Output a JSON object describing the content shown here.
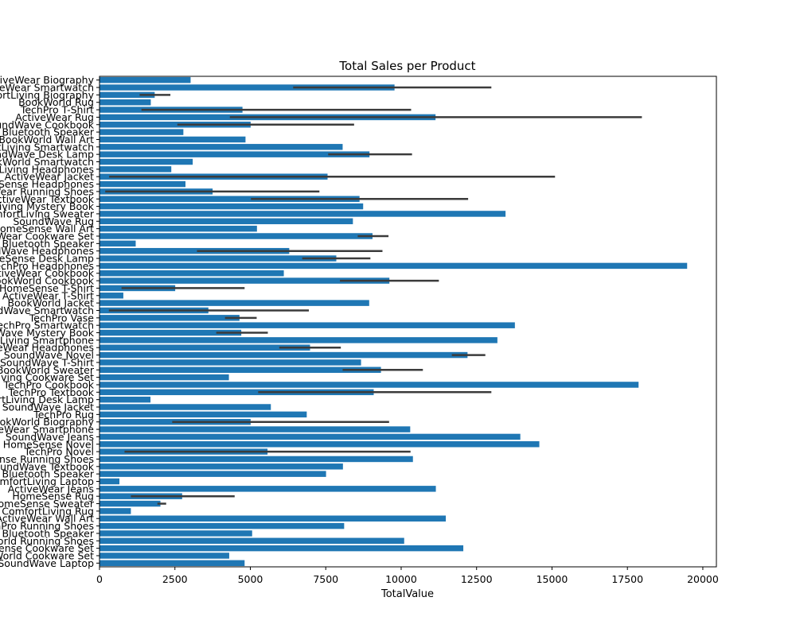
{
  "chart_data": {
    "type": "bar",
    "orientation": "horizontal",
    "title": "Total Sales per Product",
    "xlabel": "TotalValue",
    "ylabel": "",
    "xlim": [
      0,
      20450
    ],
    "xticks": [
      0,
      2500,
      5000,
      7500,
      10000,
      12500,
      15000,
      17500,
      20000
    ],
    "xtick_labels": [
      "0",
      "2500",
      "5000",
      "7500",
      "10000",
      "12500",
      "15000",
      "17500",
      "20000"
    ],
    "grid": false,
    "bar_color": "#1f77b4",
    "errorbar_color": "#3b3b3b",
    "categories": [
      "ActiveWear Biography",
      "ActiveWear Smartwatch",
      "ComfortLiving Biography",
      "BookWorld Rug",
      "TechPro T-Shirt",
      "ActiveWear Rug",
      "SoundWave Cookbook",
      "Bluetooth Speaker",
      "BookWorld Wall Art",
      "ComfortLiving Smartwatch",
      "SoundWave Desk Lamp",
      "BookWorld Smartwatch",
      "ComfortLiving Headphones",
      "ActiveWear Jacket",
      "HomeSense Headphones",
      "ActiveWear Running Shoes",
      "ActiveWear Textbook",
      "ComfortLiving Mystery Book",
      "ComfortLiving Sweater",
      "SoundWave Rug",
      "HomeSense Wall Art",
      "ActiveWear Cookware Set",
      "Bluetooth Speaker",
      "SoundWave Headphones",
      "HomeSense Desk Lamp",
      "TechPro Headphones",
      "ActiveWear Cookbook",
      "BookWorld Cookbook",
      "HomeSense T-Shirt",
      "ActiveWear T-Shirt",
      "BookWorld Jacket",
      "SoundWave Smartwatch",
      "TechPro Vase",
      "TechPro Smartwatch",
      "SoundWave Mystery Book",
      "ComfortLiving Smartphone",
      "ActiveWear Headphones",
      "SoundWave Novel",
      "SoundWave T-Shirt",
      "BookWorld Sweater",
      "ComfortLiving Cookware Set",
      "TechPro Cookbook",
      "TechPro Textbook",
      "ComfortLiving Desk Lamp",
      "SoundWave Jacket",
      "TechPro Rug",
      "BookWorld Biography",
      "ActiveWear Smartphone",
      "SoundWave Jeans",
      "HomeSense Novel",
      "TechPro Novel",
      "HomeSense Running Shoes",
      "SoundWave Textbook",
      "Bluetooth Speaker",
      "ComfortLiving Laptop",
      "ActiveWear Jeans",
      "HomeSense Rug",
      "HomeSense Sweater",
      "ComfortLiving Rug",
      "ActiveWear Wall Art",
      "TechPro Running Shoes",
      "Bluetooth Speaker",
      "BookWorld Running Shoes",
      "HomeSense Cookware Set",
      "BookWorld Cookware Set",
      "SoundWave Laptop"
    ],
    "values": [
      3020,
      9780,
      1830,
      1700,
      4740,
      11140,
      5010,
      2780,
      4840,
      8060,
      8950,
      3090,
      2380,
      7560,
      2850,
      3750,
      8620,
      8740,
      13460,
      8400,
      5220,
      9050,
      1200,
      6290,
      7850,
      19480,
      6110,
      9610,
      2510,
      790,
      8940,
      3610,
      4640,
      13770,
      4700,
      13190,
      6980,
      12200,
      8670,
      9330,
      4290,
      17870,
      9090,
      1690,
      5680,
      6870,
      5010,
      10300,
      13950,
      14580,
      5570,
      10390,
      8070,
      7510,
      660,
      11150,
      2740,
      2020,
      1040,
      11480,
      8110,
      5060,
      10100,
      12060,
      4300,
      4810
    ],
    "error_low": [
      null,
      6420,
      1330,
      null,
      1390,
      4320,
      2580,
      null,
      null,
      null,
      7580,
      null,
      null,
      320,
      null,
      190,
      5020,
      null,
      null,
      null,
      null,
      8560,
      null,
      3230,
      6720,
      null,
      null,
      7970,
      730,
      null,
      null,
      310,
      4160,
      null,
      3870,
      null,
      5960,
      11680,
      null,
      8060,
      null,
      null,
      5260,
      null,
      null,
      null,
      2410,
      null,
      null,
      null,
      830,
      null,
      null,
      null,
      null,
      null,
      1040,
      1920,
      null,
      null,
      null,
      null,
      null,
      null,
      null,
      null
    ],
    "error_high": [
      null,
      12990,
      2350,
      null,
      10330,
      17980,
      8440,
      null,
      null,
      null,
      10360,
      null,
      null,
      15100,
      null,
      7290,
      12220,
      null,
      null,
      null,
      null,
      9580,
      null,
      9380,
      8980,
      null,
      null,
      11250,
      4810,
      null,
      null,
      6940,
      5210,
      null,
      5580,
      null,
      8000,
      12790,
      null,
      10720,
      null,
      null,
      12990,
      null,
      null,
      null,
      9600,
      null,
      null,
      null,
      10310,
      null,
      null,
      null,
      null,
      null,
      4480,
      2210,
      null,
      null,
      null,
      null,
      null,
      null,
      null,
      null
    ]
  }
}
